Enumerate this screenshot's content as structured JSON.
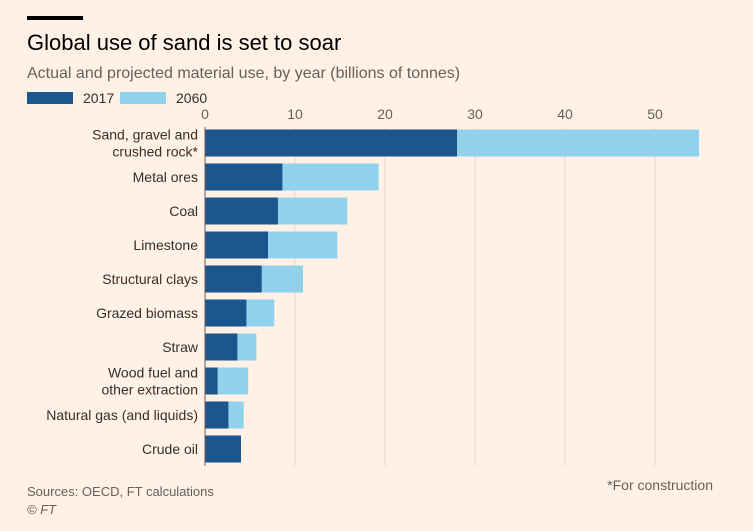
{
  "title": "Global use of sand is set to soar",
  "subtitle": "Actual and projected material use, by year (billions of tonnes)",
  "footer": {
    "sources": "Sources: OECD, FT calculations",
    "copyright": "© FT",
    "note": "*For construction"
  },
  "colors": {
    "s2017": "#1d558f",
    "s2060": "#8fd2ea",
    "grid": "#e6d9ce"
  },
  "chart_data": {
    "type": "bar",
    "orientation": "horizontal",
    "stacking": "overlay",
    "title": "Global use of sand is set to soar",
    "xlim": [
      0,
      55
    ],
    "xticks": [
      0,
      10,
      20,
      30,
      40,
      50
    ],
    "categories": [
      [
        "Sand, gravel and",
        "crushed rock*"
      ],
      [
        "Metal ores"
      ],
      [
        "Coal"
      ],
      [
        "Limestone"
      ],
      [
        "Structural clays"
      ],
      [
        "Grazed biomass"
      ],
      [
        "Straw"
      ],
      [
        "Wood fuel and",
        "other extraction"
      ],
      [
        "Natural gas (and liquids)"
      ],
      [
        "Crude oil"
      ]
    ],
    "series": [
      {
        "name": "2060",
        "values": [
          54.9,
          19.3,
          15.8,
          14.7,
          10.9,
          7.7,
          5.7,
          4.8,
          4.3,
          4.0
        ]
      },
      {
        "name": "2017",
        "values": [
          28.0,
          8.6,
          8.1,
          7.0,
          6.3,
          4.6,
          3.6,
          1.4,
          2.6,
          4.0
        ]
      }
    ],
    "legend": [
      "2017",
      "2060"
    ],
    "legend_position": "top-left",
    "grid": true
  }
}
